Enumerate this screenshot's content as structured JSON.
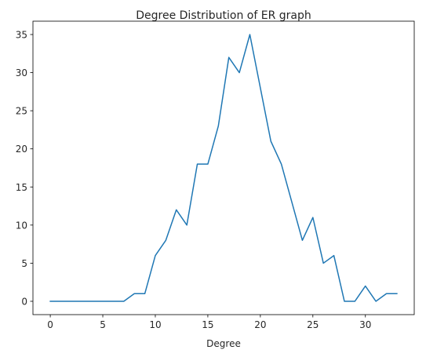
{
  "chart_data": {
    "type": "line",
    "title": "Degree Distribution of ER graph",
    "xlabel": "Degree",
    "ylabel": "",
    "xlim": [
      -1.65,
      34.65
    ],
    "ylim": [
      -1.75,
      36.75
    ],
    "xticks": [
      0,
      5,
      10,
      15,
      20,
      25,
      30
    ],
    "yticks": [
      0,
      5,
      10,
      15,
      20,
      25,
      30,
      35
    ],
    "grid": false,
    "series": [
      {
        "color": "#1f77b4",
        "x": [
          0,
          1,
          2,
          3,
          4,
          5,
          6,
          7,
          8,
          9,
          10,
          11,
          12,
          13,
          14,
          15,
          16,
          17,
          18,
          19,
          20,
          21,
          22,
          23,
          24,
          25,
          26,
          27,
          28,
          29,
          30,
          31,
          32,
          33
        ],
        "y": [
          0,
          0,
          0,
          0,
          0,
          0,
          0,
          0,
          1,
          1,
          6,
          8,
          12,
          10,
          18,
          18,
          23,
          32,
          30,
          35,
          28,
          21,
          18,
          13,
          8,
          11,
          5,
          6,
          0,
          0,
          2,
          0,
          1,
          1
        ]
      }
    ]
  }
}
